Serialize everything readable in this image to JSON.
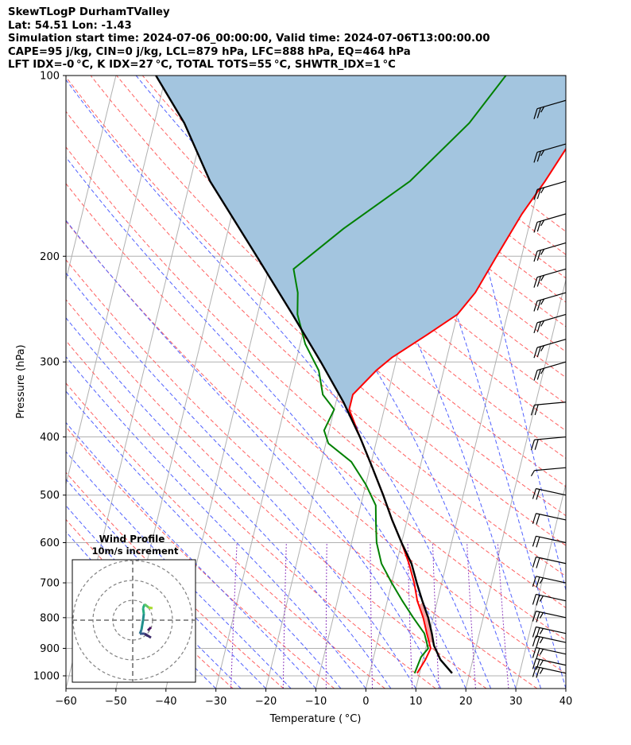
{
  "header": {
    "line1": "SkewTLogP DurhamTValley",
    "line2": "Lat: 54.51   Lon: -1.43",
    "line3": "Simulation start time: 2024-07-06_00:00:00, Valid time: 2024-07-06T13:00:00.00",
    "line4": "CAPE=95 j/kg, CIN=0 j/kg, LCL=879 hPa, LFC=888 hPa, EQ=464 hPa",
    "line5": "LFT IDX=-0 °C, K IDX=27 °C, TOTAL TOTS=55 °C, SHWTR_IDX=1 °C"
  },
  "chart_data": {
    "type": "line",
    "subtype": "skew-t log-p",
    "xlabel": "Temperature ( °C)",
    "ylabel": "Pressure (hPa)",
    "xlim": [
      -60,
      40
    ],
    "ylim": [
      1050,
      100
    ],
    "x_ticks": [
      "−60",
      "−50",
      "−40",
      "−30",
      "−20",
      "−10",
      "0",
      "10",
      "20",
      "30",
      "40"
    ],
    "y_ticks": [
      "100",
      "200",
      "300",
      "400",
      "500",
      "600",
      "700",
      "800",
      "900",
      "1000"
    ],
    "y_scale": "log",
    "skew": "isotherms slanted to the right",
    "grid": true,
    "series": [
      {
        "role": "temperature",
        "color": "#ff0000",
        "points": [
          [
            9.5,
            990
          ],
          [
            10.5,
            940
          ],
          [
            11,
            900
          ],
          [
            9.5,
            850
          ],
          [
            8,
            800
          ],
          [
            6,
            750
          ],
          [
            4.5,
            700
          ],
          [
            2.5,
            650
          ],
          [
            0,
            600
          ],
          [
            -3,
            550
          ],
          [
            -6,
            500
          ],
          [
            -9.5,
            450
          ],
          [
            -13.5,
            400
          ],
          [
            -17,
            360
          ],
          [
            -17,
            340
          ],
          [
            -13.5,
            310
          ],
          [
            -11,
            295
          ],
          [
            -5,
            270
          ],
          [
            0,
            250
          ],
          [
            2.5,
            230
          ],
          [
            5,
            200
          ],
          [
            8,
            170
          ],
          [
            11,
            150
          ],
          [
            14,
            130
          ],
          [
            16,
            117
          ],
          [
            17,
            110
          ],
          [
            18,
            100
          ]
        ]
      },
      {
        "role": "dewpoint",
        "color": "#008000",
        "points": [
          [
            9,
            990
          ],
          [
            9.5,
            930
          ],
          [
            10.5,
            900
          ],
          [
            9,
            850
          ],
          [
            6,
            800
          ],
          [
            3,
            750
          ],
          [
            0,
            700
          ],
          [
            -3,
            650
          ],
          [
            -5,
            600
          ],
          [
            -6,
            560
          ],
          [
            -7,
            520
          ],
          [
            -10,
            480
          ],
          [
            -14,
            440
          ],
          [
            -19.5,
            410
          ],
          [
            -21,
            390
          ],
          [
            -20,
            360
          ],
          [
            -23,
            340
          ],
          [
            -25,
            310
          ],
          [
            -29,
            280
          ],
          [
            -32,
            250
          ],
          [
            -33,
            230
          ],
          [
            -35,
            210
          ],
          [
            -27,
            180
          ],
          [
            -16,
            150
          ],
          [
            -7,
            120
          ],
          [
            -2,
            100
          ]
        ]
      },
      {
        "role": "parcel",
        "color": "#000000",
        "points": [
          [
            16.5,
            990
          ],
          [
            13.5,
            940
          ],
          [
            11.5,
            890
          ],
          [
            10.5,
            850
          ],
          [
            9,
            800
          ],
          [
            7,
            750
          ],
          [
            5,
            700
          ],
          [
            3,
            650
          ],
          [
            0,
            600
          ],
          [
            -3,
            550
          ],
          [
            -6,
            500
          ],
          [
            -9.5,
            450
          ],
          [
            -13.5,
            400
          ],
          [
            -18.5,
            350
          ],
          [
            -25,
            300
          ],
          [
            -33,
            250
          ],
          [
            -43,
            200
          ],
          [
            -56,
            150
          ],
          [
            -64,
            120
          ],
          [
            -72,
            100
          ]
        ]
      }
    ],
    "cape_shading_color": "#a3c5df",
    "cin_shading_color": "#f4a6a6",
    "reference_lines": [
      "dry adiabats (red dashed)",
      "moist adiabats (blue dashed)",
      "mixing ratio (purple dashed)",
      "isotherms (gray)"
    ],
    "wind_barbs": [
      {
        "p": 110,
        "kts": 15
      },
      {
        "p": 130,
        "kts": 15
      },
      {
        "p": 150,
        "kts": 15
      },
      {
        "p": 170,
        "kts": 15
      },
      {
        "p": 190,
        "kts": 15
      },
      {
        "p": 210,
        "kts": 15
      },
      {
        "p": 230,
        "kts": 15
      },
      {
        "p": 250,
        "kts": 15
      },
      {
        "p": 275,
        "kts": 15
      },
      {
        "p": 300,
        "kts": 15
      },
      {
        "p": 350,
        "kts": 10
      },
      {
        "p": 400,
        "kts": 10
      },
      {
        "p": 450,
        "kts": 5
      },
      {
        "p": 500,
        "kts": 10
      },
      {
        "p": 550,
        "kts": 10
      },
      {
        "p": 600,
        "kts": 10
      },
      {
        "p": 650,
        "kts": 10
      },
      {
        "p": 700,
        "kts": 15
      },
      {
        "p": 750,
        "kts": 15
      },
      {
        "p": 800,
        "kts": 15
      },
      {
        "p": 850,
        "kts": 15
      },
      {
        "p": 880,
        "kts": 15
      },
      {
        "p": 920,
        "kts": 15
      },
      {
        "p": 960,
        "kts": 15
      },
      {
        "p": 990,
        "kts": 15
      }
    ],
    "inset": {
      "title": "Wind Profile",
      "subtitle": "10m/s increment",
      "type": "hodograph"
    }
  }
}
